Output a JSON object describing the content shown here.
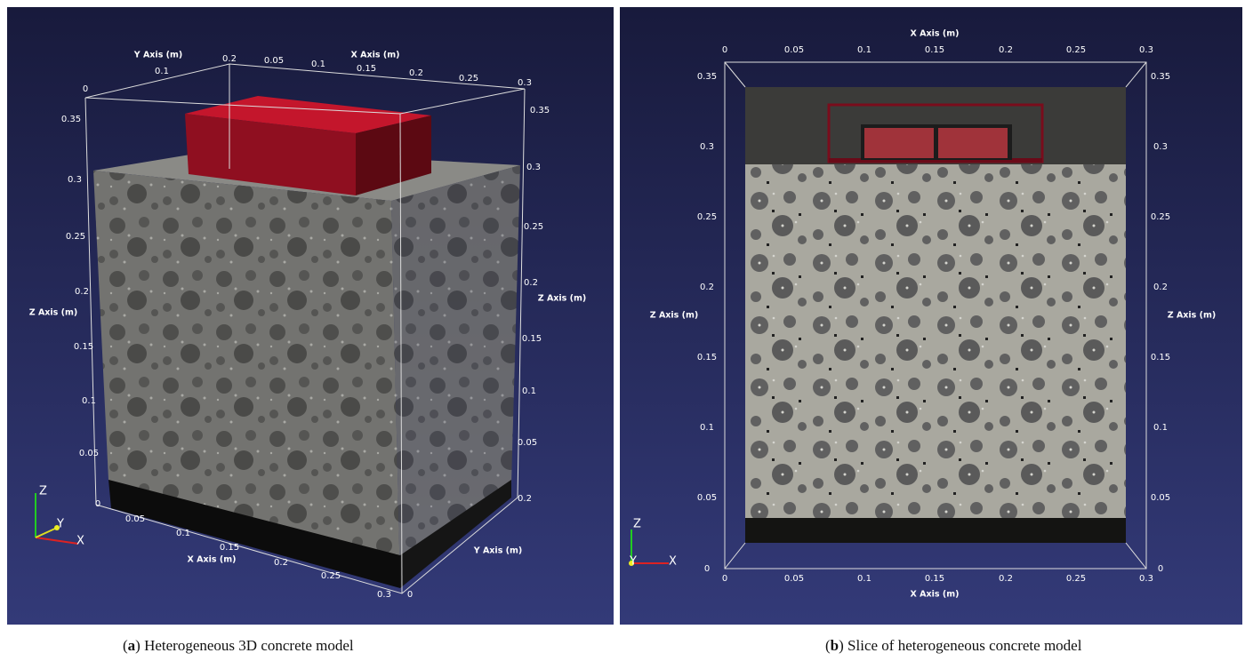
{
  "panels": [
    {
      "axis_titles": [
        "Y Axis (m)",
        "X Axis (m)",
        "Z Axis (m)",
        "Z Axis (m)",
        "X Axis (m)",
        "Y Axis (m)"
      ],
      "tick_labels": [
        "0.1",
        "0",
        "0.2",
        "0.05",
        "0.1",
        "0.15",
        "0.2",
        "0.25",
        "0.3",
        "0.35",
        "0.3",
        "0.25",
        "0.2",
        "0.15",
        "0.1",
        "0.05",
        "0",
        "0.35",
        "0.3",
        "0.25",
        "0.2",
        "0.15",
        "0.1",
        "0.05",
        "0.2",
        "0.05",
        "0.1",
        "0.15",
        "0.2",
        "0.25",
        "0.3",
        "0"
      ],
      "orientation": [
        "Z",
        "Y",
        "X"
      ],
      "caption": {
        "open": "(",
        "label": "a",
        "rest": ") Heterogeneous 3D concrete model"
      }
    },
    {
      "axis_titles": [
        "X Axis (m)",
        "X Axis (m)",
        "Z Axis (m)",
        "Z Axis (m)"
      ],
      "tick_labels": [
        "0",
        "0.05",
        "0.1",
        "0.15",
        "0.2",
        "0.25",
        "0.3",
        "0",
        "0.05",
        "0.1",
        "0.15",
        "0.2",
        "0.25",
        "0.3",
        "0.35",
        "0.3",
        "0.25",
        "0.2",
        "0.15",
        "0.1",
        "0.05",
        "0",
        "0.35",
        "0.3",
        "0.25",
        "0.2",
        "0.15",
        "0.1",
        "0.05",
        "0"
      ],
      "orientation": [
        "Z",
        "Y",
        "X"
      ],
      "caption": {
        "open": "(",
        "label": "b",
        "rest": ") Slice of heterogeneous concrete model"
      }
    }
  ]
}
